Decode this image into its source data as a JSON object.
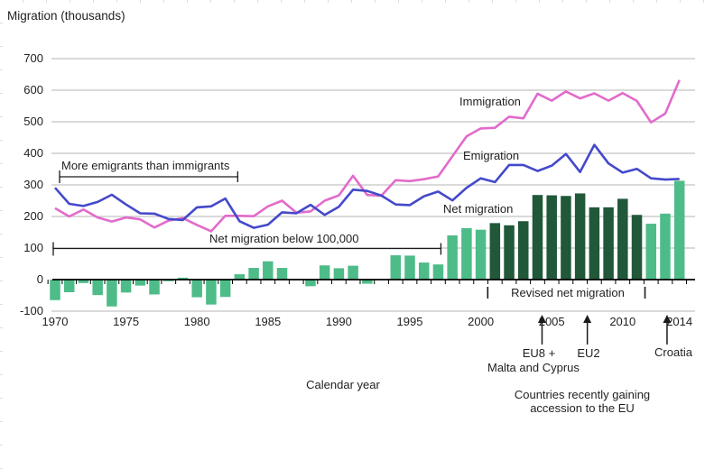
{
  "title": "Migration (thousands)",
  "xlabel": "Calendar year",
  "chart_data": {
    "type": "combo bar+line",
    "x": [
      1970,
      1971,
      1972,
      1973,
      1974,
      1975,
      1976,
      1977,
      1978,
      1979,
      1980,
      1981,
      1982,
      1983,
      1984,
      1985,
      1986,
      1987,
      1988,
      1989,
      1990,
      1991,
      1992,
      1993,
      1994,
      1995,
      1996,
      1997,
      1998,
      1999,
      2000,
      2001,
      2002,
      2003,
      2004,
      2005,
      2006,
      2007,
      2008,
      2009,
      2010,
      2011,
      2012,
      2013,
      2014
    ],
    "ylim": [
      -100,
      700
    ],
    "yticks": [
      700,
      600,
      500,
      400,
      300,
      200,
      100,
      0,
      -100
    ],
    "xticks": [
      1970,
      1975,
      1980,
      1985,
      1990,
      1995,
      2000,
      2005,
      2010,
      2014
    ],
    "grid": "horizontal",
    "legend": "inline data labels, no legend box",
    "series": [
      {
        "name": "Immigration",
        "type": "line",
        "color": "#e26bcb",
        "values": [
          226,
          200,
          222,
          197,
          184,
          197,
          191,
          165,
          187,
          195,
          173,
          153,
          202,
          202,
          201,
          232,
          250,
          212,
          216,
          250,
          267,
          329,
          268,
          266,
          315,
          312,
          318,
          327,
          391,
          454,
          479,
          481,
          516,
          511,
          589,
          567,
          596,
          574,
          590,
          567,
          591,
          566,
          498,
          526,
          632
        ]
      },
      {
        "name": "Emigration",
        "type": "line",
        "color": "#4449cb",
        "values": [
          291,
          240,
          233,
          246,
          269,
          238,
          210,
          209,
          192,
          189,
          229,
          232,
          257,
          185,
          164,
          174,
          213,
          210,
          237,
          205,
          231,
          285,
          281,
          266,
          238,
          236,
          264,
          279,
          251,
          291,
          321,
          309,
          363,
          363,
          344,
          361,
          398,
          341,
          427,
          368,
          339,
          351,
          321,
          317,
          319
        ]
      },
      {
        "name": "Net migration",
        "type": "bar",
        "color": "#4dbc89",
        "revised_color": "#215839",
        "revised_year_range": [
          2001,
          2011
        ],
        "values": [
          -65,
          -40,
          -11,
          -49,
          -85,
          -41,
          -19,
          -47,
          -5,
          6,
          -56,
          -79,
          -55,
          17,
          37,
          58,
          37,
          2,
          -21,
          45,
          36,
          44,
          -13,
          -1,
          77,
          76,
          54,
          48,
          140,
          163,
          158,
          179,
          172,
          185,
          268,
          267,
          265,
          273,
          229,
          229,
          256,
          205,
          177,
          209,
          313
        ]
      }
    ]
  },
  "annotations": {
    "more_emigrants": "More emigrants than immigrants",
    "more_emigrants_year_range": [
      1970,
      1983
    ],
    "net_below_100k": "Net migration below 100,000",
    "net_below_100k_year_range": [
      1970,
      1997
    ],
    "net_below_100k_level": 100,
    "revised": "Revised net migration",
    "revised_year_range": [
      2001,
      2011
    ],
    "arrows": [
      {
        "year": 2004,
        "label_line1": "EU8 +",
        "label_line2": "Malta and Cyprus"
      },
      {
        "year": 2007,
        "label_line1": "EU2",
        "label_line2": ""
      },
      {
        "year": 2013,
        "label_line1": "Croatia",
        "label_line2": ""
      }
    ],
    "accession_line1": "Countries recently gaining",
    "accession_line2": "accession to the EU"
  },
  "colors": {
    "gridline": "#c3c3c3",
    "axis": "#000000",
    "annotation": "#1a1a1a",
    "text": "#1f1f1f"
  }
}
